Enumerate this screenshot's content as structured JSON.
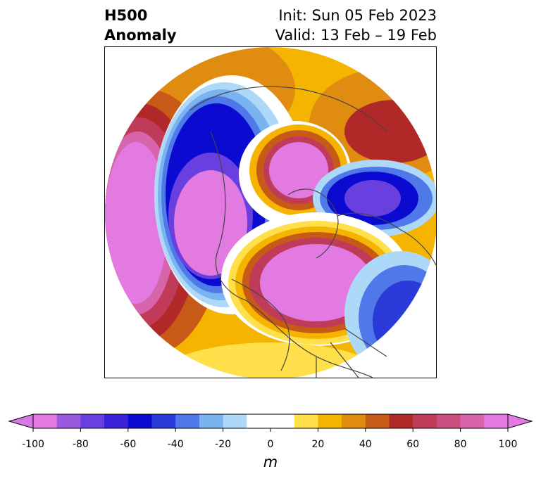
{
  "title": {
    "line1_left": "H500",
    "line2_left": "Anomaly",
    "line1_right": "Init: Sun 05 Feb 2023",
    "line2_right": "Valid: 13 Feb – 19 Feb"
  },
  "colorbar": {
    "units": "m",
    "tick_labels": [
      "-100",
      "-80",
      "-60",
      "-40",
      "-20",
      "0",
      "20",
      "40",
      "60",
      "80",
      "100"
    ],
    "colors": [
      "#e27ae2",
      "#9b59e0",
      "#6a3fe0",
      "#3a22d8",
      "#0a0ad0",
      "#2a3ad8",
      "#4f78e8",
      "#7ab4f0",
      "#aed8f8",
      "#ffffff",
      "#ffffff",
      "#ffe04a",
      "#f4b400",
      "#e08c10",
      "#c85a18",
      "#b02828",
      "#c03a5a",
      "#cc4e80",
      "#d864ac",
      "#e27ae2"
    ],
    "min_arrow_color": "#d679e6",
    "max_arrow_color": "#e27ae2"
  },
  "map": {
    "projection": "north-polar-stereographic",
    "field": "500 hPa geopotential height anomaly",
    "features": [
      {
        "name": "North Pacific negative anomaly",
        "sign": "negative",
        "peak": -100
      },
      {
        "name": "Alaska positive anomaly",
        "sign": "positive",
        "peak": 100
      },
      {
        "name": "Greenland/Arctic positive anomaly",
        "sign": "positive",
        "peak": 100
      },
      {
        "name": "Siberia negative anomaly",
        "sign": "negative",
        "peak": -80
      },
      {
        "name": "Europe negative anomaly",
        "sign": "negative",
        "peak": -80
      },
      {
        "name": "Eastern Asia positive anomaly",
        "sign": "positive",
        "peak": 60
      },
      {
        "name": "Western Atlantic negative anomaly",
        "sign": "negative",
        "peak": -60
      }
    ]
  }
}
